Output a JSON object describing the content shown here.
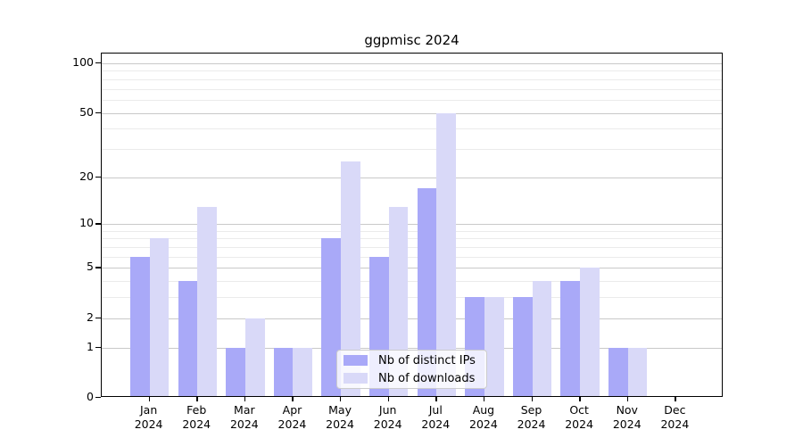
{
  "chart_data": {
    "type": "bar",
    "title": "ggpmisc 2024",
    "categories": [
      "Jan",
      "Feb",
      "Mar",
      "Apr",
      "May",
      "Jun",
      "Jul",
      "Aug",
      "Sep",
      "Oct",
      "Nov",
      "Dec"
    ],
    "x_year_label": "2024",
    "series": [
      {
        "name": "Nb of distinct IPs",
        "color": "#a9a9f8",
        "values": [
          6,
          4,
          1,
          1,
          8,
          6,
          17,
          3,
          3,
          4,
          1,
          0
        ]
      },
      {
        "name": "Nb of downloads",
        "color": "#d9d9f8",
        "values": [
          8,
          13,
          2,
          1,
          25,
          13,
          50,
          3,
          4,
          5,
          1,
          0
        ]
      }
    ],
    "y_scale": "log1p",
    "y_ticks": [
      100,
      50,
      20,
      10,
      5,
      2,
      1,
      0
    ],
    "y_minor_ticks": [
      3,
      4,
      6,
      7,
      8,
      9,
      30,
      40,
      60,
      70,
      80,
      90
    ],
    "ylim": [
      0,
      115
    ],
    "grid": true,
    "legend_position": "bottom-center"
  }
}
